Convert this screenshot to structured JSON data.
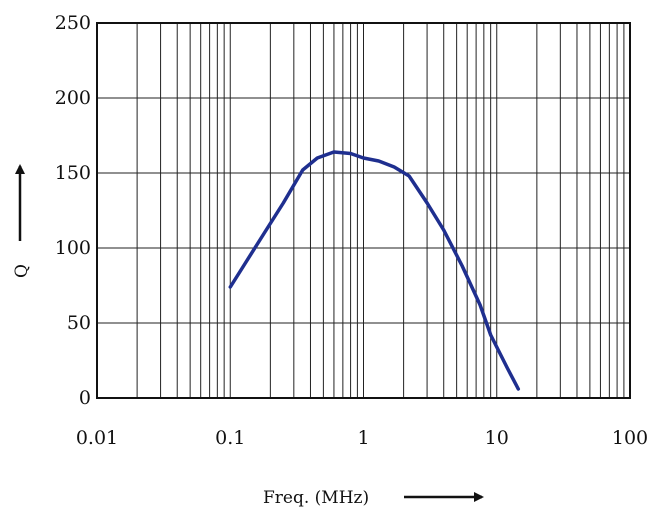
{
  "chart_data": {
    "type": "line",
    "title": "",
    "xlabel": "Freq. (MHz)",
    "ylabel": "Q",
    "x_scale": "log",
    "xlim": [
      0.01,
      100
    ],
    "ylim": [
      0,
      250
    ],
    "grid": true,
    "colors": {
      "curve": "#1f2f8f",
      "axis": "#111111"
    },
    "x_tick_labels": [
      "0.01",
      "0.1",
      "1",
      "10",
      "100"
    ],
    "x_ticks": [
      0.01,
      0.1,
      1,
      10,
      100
    ],
    "y_tick_labels": [
      "0",
      "50",
      "100",
      "150",
      "200",
      "250"
    ],
    "y_ticks": [
      0,
      50,
      100,
      150,
      200,
      250
    ],
    "series": [
      {
        "x": [
          0.1,
          0.13,
          0.18,
          0.25,
          0.35,
          0.45,
          0.6,
          0.8,
          1.0,
          1.3,
          1.7,
          2.2,
          3.0,
          4.0,
          5.5,
          7.5,
          9.0,
          12.0,
          14.5
        ],
        "y": [
          74,
          90,
          110,
          130,
          152,
          160,
          164,
          163,
          160,
          158,
          154,
          148,
          130,
          112,
          88,
          62,
          42,
          20,
          6
        ]
      }
    ]
  }
}
